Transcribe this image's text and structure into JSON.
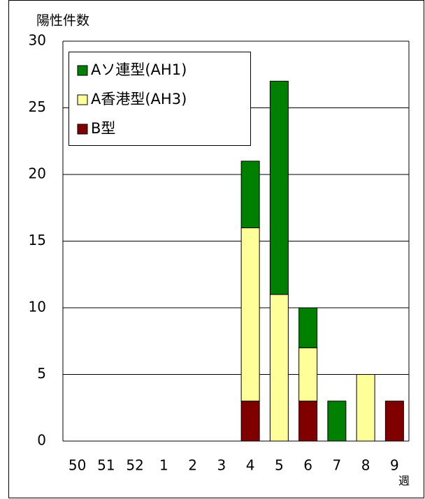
{
  "chart_data": {
    "type": "stacked-bar",
    "y_axis_label": "陽性件数",
    "x_axis_label": "週",
    "categories": [
      "50",
      "51",
      "52",
      "1",
      "2",
      "3",
      "4",
      "5",
      "6",
      "7",
      "8",
      "9"
    ],
    "series": [
      {
        "name": "Aソ連型(AH1)",
        "color": "#008000",
        "values": [
          0,
          0,
          0,
          0,
          0,
          0,
          5,
          16,
          3,
          3,
          0,
          0
        ]
      },
      {
        "name": "A香港型(AH3)",
        "color": "#ffff99",
        "values": [
          0,
          0,
          0,
          0,
          0,
          0,
          13,
          11,
          4,
          0,
          5,
          0
        ]
      },
      {
        "name": "B型",
        "color": "#800000",
        "values": [
          0,
          0,
          0,
          0,
          0,
          0,
          3,
          0,
          3,
          0,
          0,
          3
        ]
      }
    ],
    "ylim": [
      0,
      30
    ],
    "yticks": [
      0,
      5,
      10,
      15,
      20,
      25,
      30
    ],
    "grid": true
  }
}
